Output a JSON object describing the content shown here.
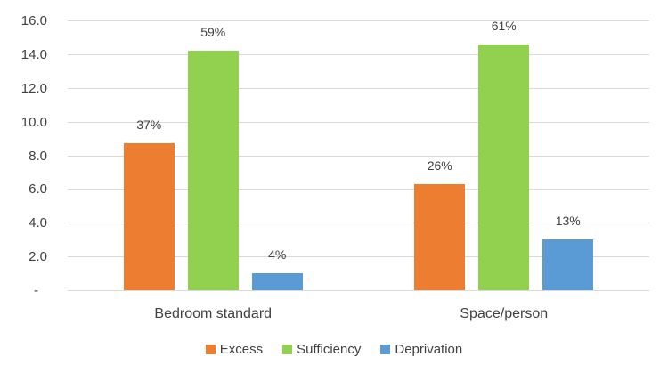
{
  "chart_data": {
    "type": "bar",
    "title": "",
    "categories": [
      "Bedroom standard",
      "Space/person"
    ],
    "series": [
      {
        "name": "Excess",
        "color": "#ED7D31",
        "values": [
          8.7,
          6.3
        ],
        "labels": [
          "37%",
          "26%"
        ]
      },
      {
        "name": "Sufficiency",
        "color": "#92D050",
        "values": [
          14.2,
          14.6
        ],
        "labels": [
          "59%",
          "61%"
        ]
      },
      {
        "name": "Deprivation",
        "color": "#5B9BD5",
        "values": [
          1.0,
          3.0
        ],
        "labels": [
          "4%",
          "13%"
        ]
      }
    ],
    "y_axis": {
      "min": 0,
      "max": 16,
      "step": 2,
      "tick_labels": [
        "-",
        "2.0",
        "4.0",
        "6.0",
        "8.0",
        "10.0",
        "12.0",
        "14.0",
        "16.0"
      ]
    },
    "grid": true,
    "legend_position": "bottom",
    "gridline_color": "#D9D9D9",
    "text_color": "#404040",
    "background": "#FFFFFF"
  }
}
